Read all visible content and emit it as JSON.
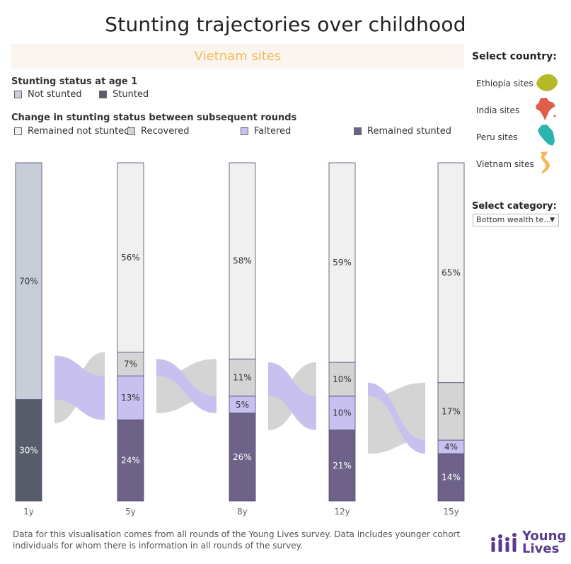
{
  "title": "Stunting trajectories over childhood",
  "site_banner": "Vietnam sites",
  "status_legend": {
    "title": "Stunting status at age 1",
    "items": [
      {
        "label": "Not stunted",
        "color": "#c8ced8"
      },
      {
        "label": "Stunted",
        "color": "#575d6b"
      }
    ]
  },
  "change_legend": {
    "title": "Change in stunting status between subsequent rounds",
    "items": [
      {
        "label": "Remained not stunted",
        "color": "#f0f0f0"
      },
      {
        "label": "Recovered",
        "color": "#d4d4d4"
      },
      {
        "label": "Faltered",
        "color": "#c8c0ee"
      },
      {
        "label": "Remained stunted",
        "color": "#6e6289"
      }
    ]
  },
  "chart_data": {
    "type": "bar",
    "stacked": true,
    "categories": [
      "1y",
      "5y",
      "8y",
      "12y",
      "15y"
    ],
    "series": [
      {
        "name": "Remained stunted",
        "values": [
          null,
          24,
          26,
          21,
          14
        ]
      },
      {
        "name": "Faltered",
        "values": [
          null,
          13,
          5,
          10,
          4
        ]
      },
      {
        "name": "Recovered",
        "values": [
          null,
          7,
          11,
          10,
          17
        ]
      },
      {
        "name": "Remained not stunted",
        "values": [
          null,
          56,
          58,
          59,
          65
        ]
      },
      {
        "name": "Stunted",
        "values": [
          30,
          null,
          null,
          null,
          null
        ]
      },
      {
        "name": "Not stunted",
        "values": [
          70,
          null,
          null,
          null,
          null
        ]
      }
    ],
    "labels": [
      [
        "30%",
        "70%"
      ],
      [
        "24%",
        "13%",
        "7%",
        "56%"
      ],
      [
        "26%",
        "5%",
        "11%",
        "58%"
      ],
      [
        "21%",
        "10%",
        "10%",
        "59%"
      ],
      [
        "14%",
        "4%",
        "17%",
        "65%"
      ]
    ],
    "flows": [
      {
        "between": [
          "1y",
          "5y"
        ],
        "faltered": 13,
        "recovered": 7
      },
      {
        "between": [
          "5y",
          "8y"
        ],
        "faltered": 5,
        "recovered": 11
      },
      {
        "between": [
          "8y",
          "12y"
        ],
        "faltered": 10,
        "recovered": 10
      },
      {
        "between": [
          "12y",
          "15y"
        ],
        "faltered": 4,
        "recovered": 17
      }
    ],
    "ylim": [
      0,
      100
    ],
    "xlabel": "",
    "ylabel": ""
  },
  "sidebar": {
    "select_country_title": "Select country:",
    "countries": [
      {
        "label": "Ethiopia sites",
        "color": "#b5b827",
        "icon": "ethiopia-map-icon"
      },
      {
        "label": "India sites",
        "color": "#e05c4b",
        "icon": "india-map-icon"
      },
      {
        "label": "Peru sites",
        "color": "#2bb3b0",
        "icon": "peru-map-icon"
      },
      {
        "label": "Vietnam sites",
        "color": "#f6b859",
        "icon": "vietnam-map-icon"
      }
    ],
    "select_category_title": "Select category:",
    "category_value": "Bottom wealth te..."
  },
  "footer": {
    "note": "Data for this visualisation comes from all rounds of the Young Lives survey. Data includes younger cohort individuals for whom there is information in all rounds of the survey.",
    "logo_line1": "Young",
    "logo_line2": "Lives",
    "logo_color": "#5b3b8c"
  }
}
